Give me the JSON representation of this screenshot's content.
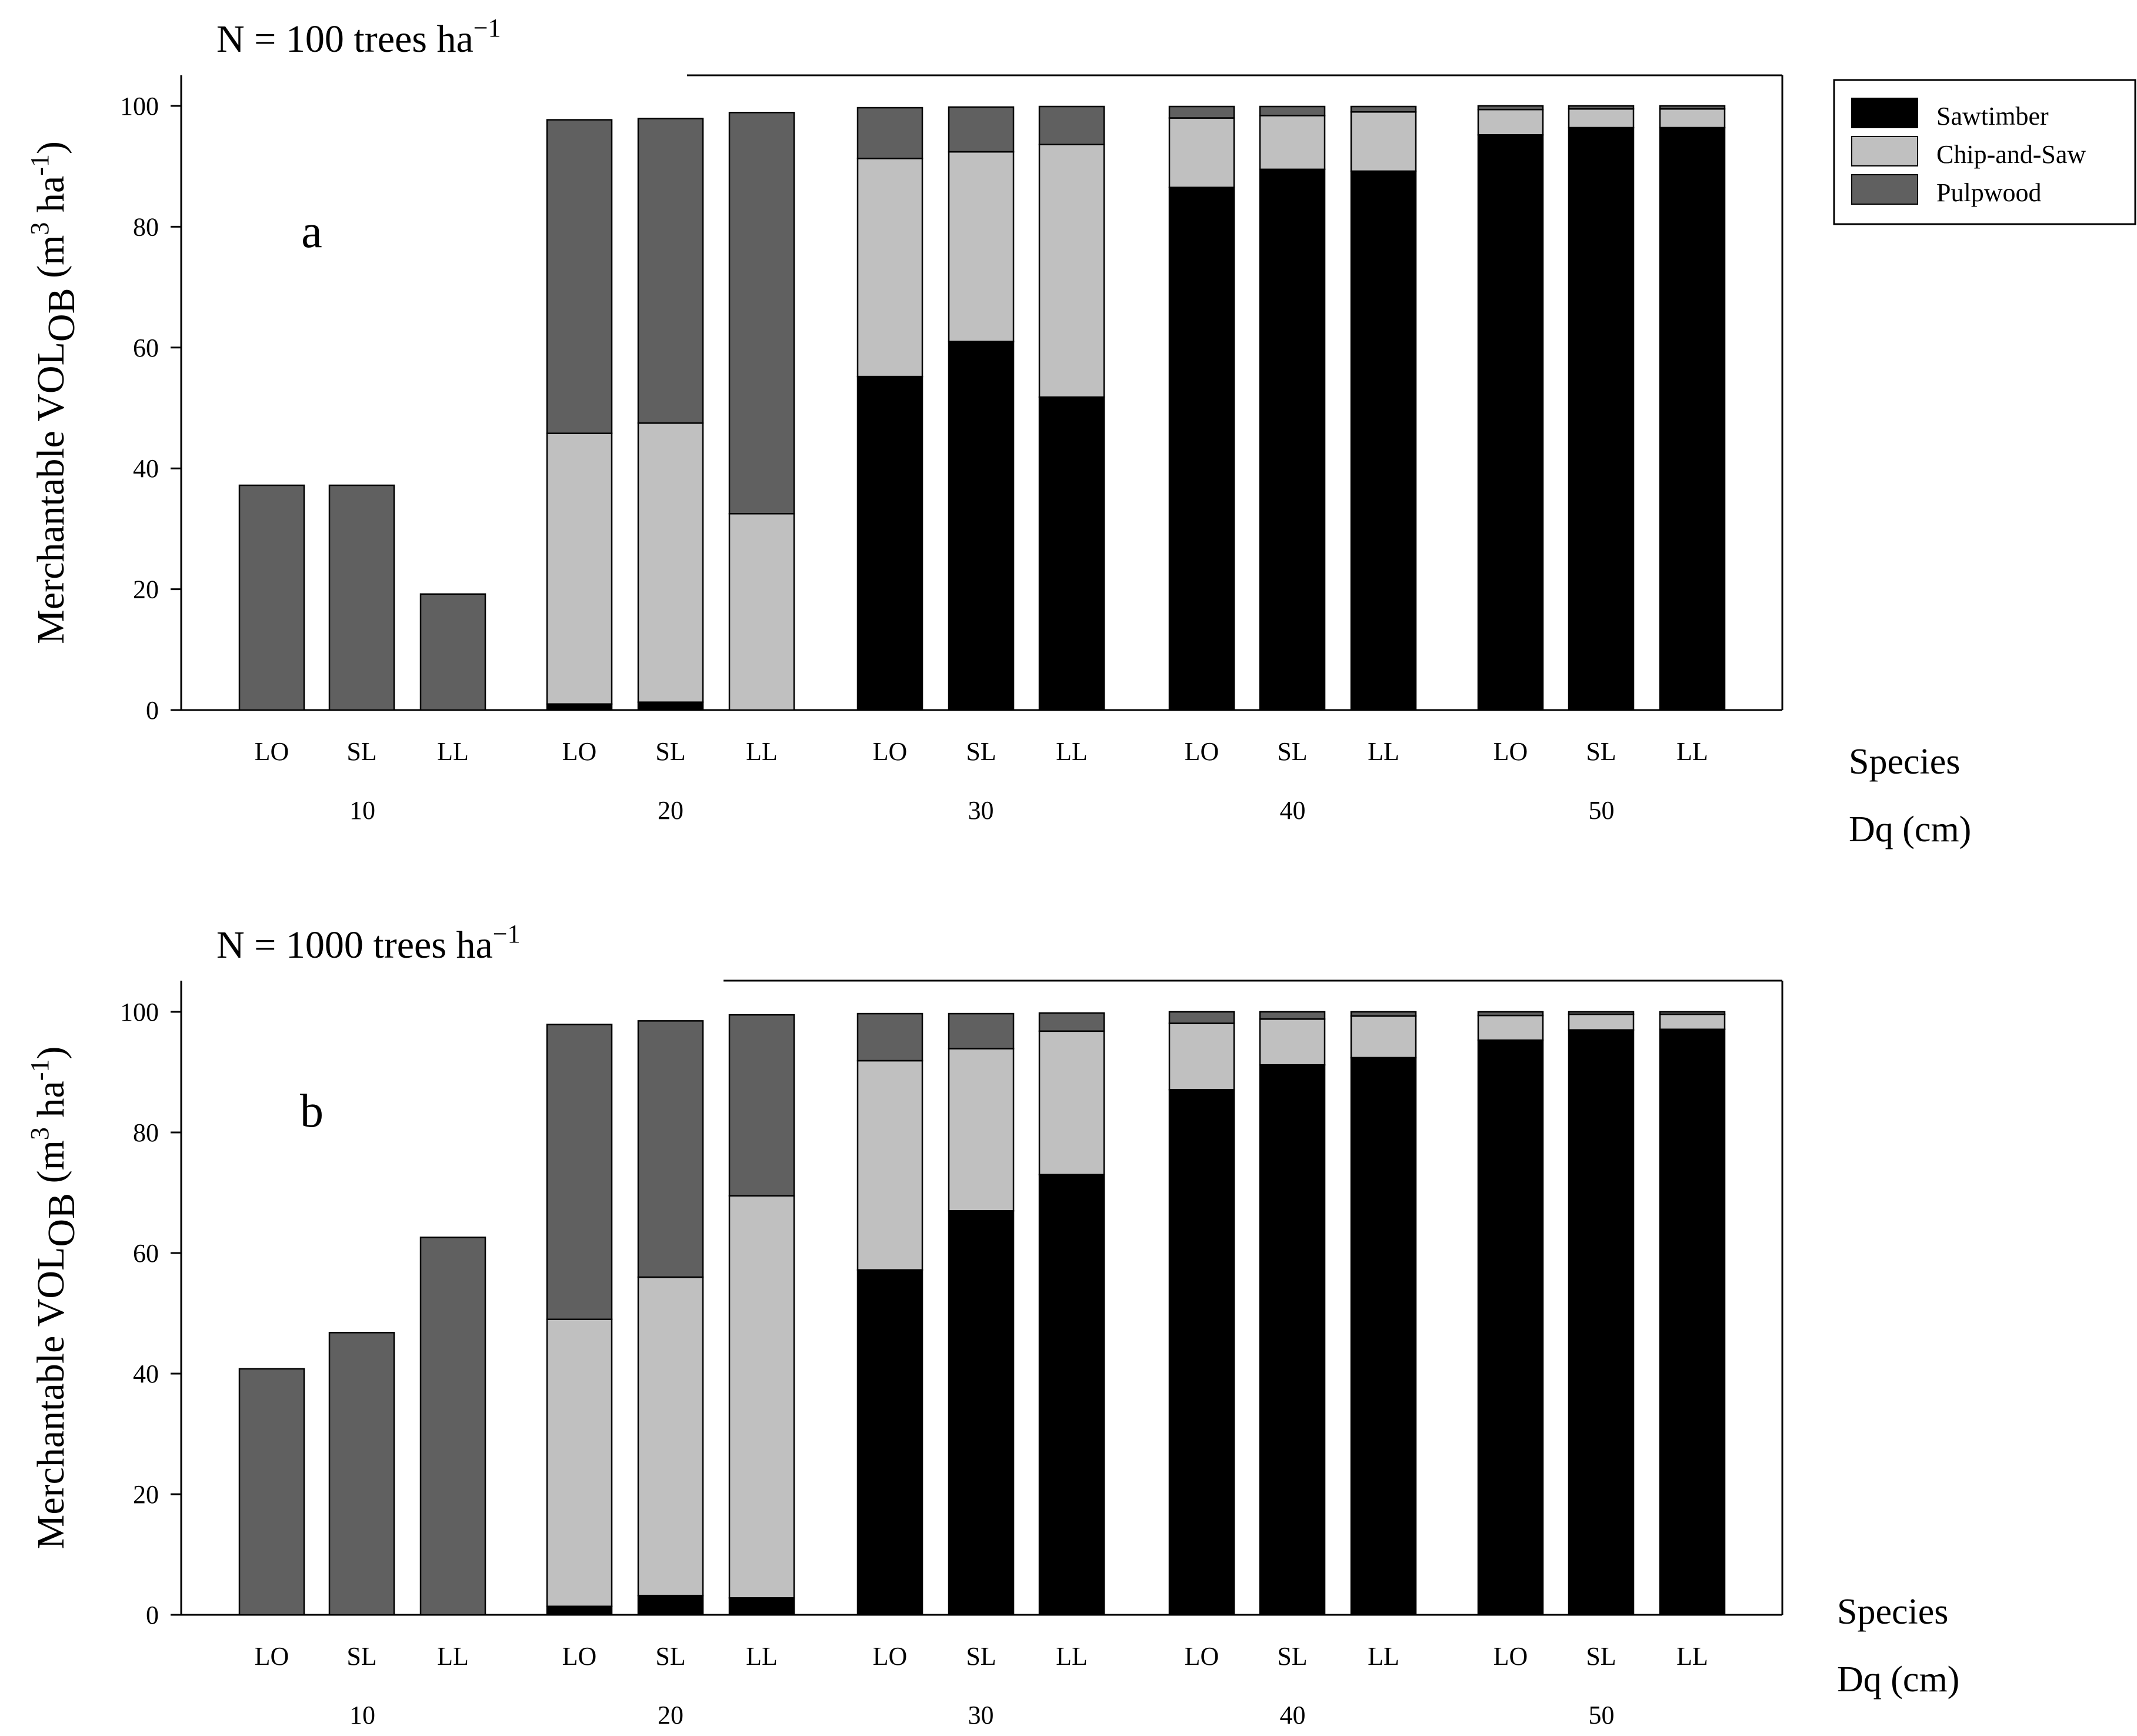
{
  "legend": {
    "items": [
      {
        "name": "Sawtimber",
        "color": "#000000"
      },
      {
        "name": "Chip-and-Saw",
        "color": "#c0c0c0"
      },
      {
        "name": "Pulpwood",
        "color": "#606060"
      }
    ]
  },
  "chart_data": [
    {
      "type": "bar",
      "stacked": true,
      "panel_label": "a",
      "title_prefix": "N = 100 trees ha",
      "title_sup": "−1",
      "ylabel_main": "Merchantable VOL",
      "ylabel_sub": "OB",
      "ylabel_unit_open": " (m",
      "ylabel_sup1": "3",
      "ylabel_unit_mid": " ha",
      "ylabel_sup2": "-1",
      "ylabel_unit_close": ")",
      "ylim": [
        0,
        105
      ],
      "yticks": [
        0,
        20,
        40,
        60,
        80,
        100
      ],
      "xlabel_species": "Species",
      "xlabel_dq": "Dq (cm)",
      "groups": [
        {
          "dq": "10",
          "bars": [
            {
              "species": "LO",
              "Sawtimber": 0,
              "Chip-and-Saw": 0,
              "Pulpwood": 37.2
            },
            {
              "species": "SL",
              "Sawtimber": 0,
              "Chip-and-Saw": 0,
              "Pulpwood": 37.2
            },
            {
              "species": "LL",
              "Sawtimber": 0,
              "Chip-and-Saw": 0,
              "Pulpwood": 19.2
            }
          ]
        },
        {
          "dq": "20",
          "bars": [
            {
              "species": "LO",
              "Sawtimber": 1.0,
              "Chip-and-Saw": 44.8,
              "Pulpwood": 51.9
            },
            {
              "species": "SL",
              "Sawtimber": 1.3,
              "Chip-and-Saw": 46.2,
              "Pulpwood": 50.4
            },
            {
              "species": "LL",
              "Sawtimber": 0,
              "Chip-and-Saw": 32.5,
              "Pulpwood": 66.4
            }
          ]
        },
        {
          "dq": "30",
          "bars": [
            {
              "species": "LO",
              "Sawtimber": 55.2,
              "Chip-and-Saw": 36.1,
              "Pulpwood": 8.4
            },
            {
              "species": "SL",
              "Sawtimber": 61.0,
              "Chip-and-Saw": 31.4,
              "Pulpwood": 7.4
            },
            {
              "species": "LL",
              "Sawtimber": 51.8,
              "Chip-and-Saw": 41.8,
              "Pulpwood": 6.3
            }
          ]
        },
        {
          "dq": "40",
          "bars": [
            {
              "species": "LO",
              "Sawtimber": 86.5,
              "Chip-and-Saw": 11.5,
              "Pulpwood": 1.9
            },
            {
              "species": "SL",
              "Sawtimber": 89.5,
              "Chip-and-Saw": 8.9,
              "Pulpwood": 1.5
            },
            {
              "species": "LL",
              "Sawtimber": 89.2,
              "Chip-and-Saw": 9.8,
              "Pulpwood": 0.9
            }
          ]
        },
        {
          "dq": "50",
          "bars": [
            {
              "species": "LO",
              "Sawtimber": 95.2,
              "Chip-and-Saw": 4.2,
              "Pulpwood": 0.6
            },
            {
              "species": "SL",
              "Sawtimber": 96.4,
              "Chip-and-Saw": 3.1,
              "Pulpwood": 0.5
            },
            {
              "species": "LL",
              "Sawtimber": 96.4,
              "Chip-and-Saw": 3.1,
              "Pulpwood": 0.5
            }
          ]
        }
      ]
    },
    {
      "type": "bar",
      "stacked": true,
      "panel_label": "b",
      "title_prefix": "N = 1000 trees ha",
      "title_sup": "−1",
      "ylabel_main": "Merchantable VOL",
      "ylabel_sub": "OB",
      "ylabel_unit_open": " (m",
      "ylabel_sup1": "3",
      "ylabel_unit_mid": " ha",
      "ylabel_sup2": "-1",
      "ylabel_unit_close": ")",
      "ylim": [
        0,
        105
      ],
      "yticks": [
        0,
        20,
        40,
        60,
        80,
        100
      ],
      "xlabel_species": "Species",
      "xlabel_dq": "Dq (cm)",
      "groups": [
        {
          "dq": "10",
          "bars": [
            {
              "species": "LO",
              "Sawtimber": 0,
              "Chip-and-Saw": 0,
              "Pulpwood": 40.8
            },
            {
              "species": "SL",
              "Sawtimber": 0,
              "Chip-and-Saw": 0,
              "Pulpwood": 46.8
            },
            {
              "species": "LL",
              "Sawtimber": 0,
              "Chip-and-Saw": 0,
              "Pulpwood": 62.6
            }
          ]
        },
        {
          "dq": "20",
          "bars": [
            {
              "species": "LO",
              "Sawtimber": 1.4,
              "Chip-and-Saw": 47.6,
              "Pulpwood": 48.9
            },
            {
              "species": "SL",
              "Sawtimber": 3.2,
              "Chip-and-Saw": 52.8,
              "Pulpwood": 42.5
            },
            {
              "species": "LL",
              "Sawtimber": 2.8,
              "Chip-and-Saw": 66.7,
              "Pulpwood": 30.0
            }
          ]
        },
        {
          "dq": "30",
          "bars": [
            {
              "species": "LO",
              "Sawtimber": 57.2,
              "Chip-and-Saw": 34.7,
              "Pulpwood": 7.8
            },
            {
              "species": "SL",
              "Sawtimber": 67.0,
              "Chip-and-Saw": 26.9,
              "Pulpwood": 5.8
            },
            {
              "species": "LL",
              "Sawtimber": 73.0,
              "Chip-and-Saw": 23.8,
              "Pulpwood": 3.0
            }
          ]
        },
        {
          "dq": "40",
          "bars": [
            {
              "species": "LO",
              "Sawtimber": 87.1,
              "Chip-and-Saw": 11.0,
              "Pulpwood": 1.9
            },
            {
              "species": "SL",
              "Sawtimber": 91.2,
              "Chip-and-Saw": 7.6,
              "Pulpwood": 1.2
            },
            {
              "species": "LL",
              "Sawtimber": 92.4,
              "Chip-and-Saw": 6.9,
              "Pulpwood": 0.7
            }
          ]
        },
        {
          "dq": "50",
          "bars": [
            {
              "species": "LO",
              "Sawtimber": 95.3,
              "Chip-and-Saw": 4.1,
              "Pulpwood": 0.6
            },
            {
              "species": "SL",
              "Sawtimber": 97.0,
              "Chip-and-Saw": 2.6,
              "Pulpwood": 0.4
            },
            {
              "species": "LL",
              "Sawtimber": 97.1,
              "Chip-and-Saw": 2.5,
              "Pulpwood": 0.4
            }
          ]
        }
      ]
    }
  ]
}
